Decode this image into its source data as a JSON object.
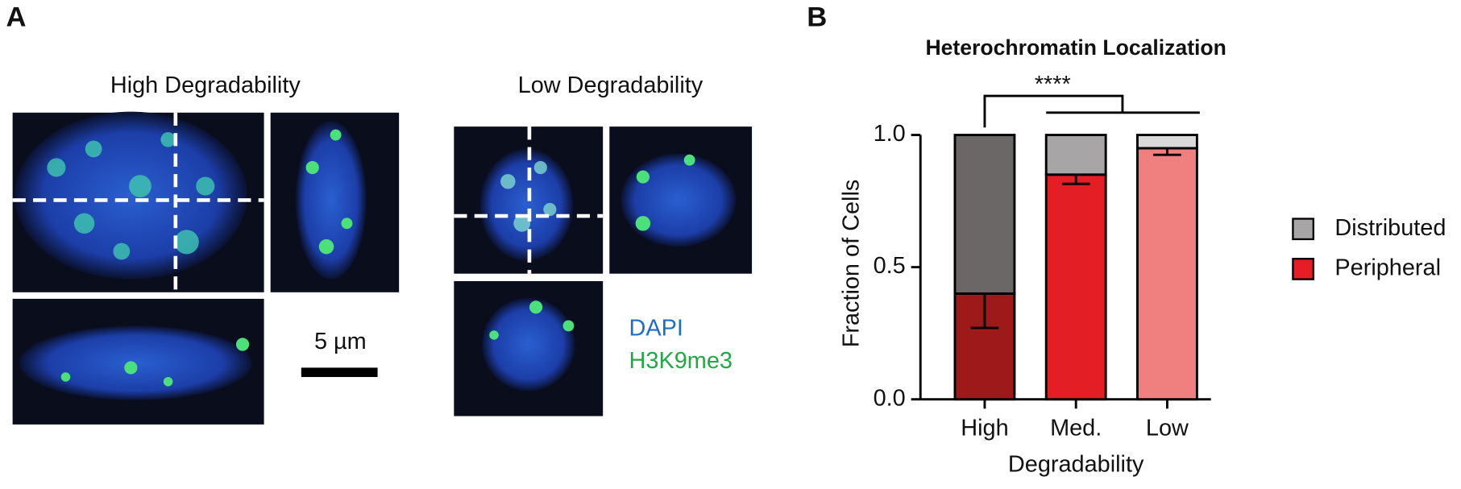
{
  "figure_a": {
    "panel_label": "A",
    "high_title": "High Degradability",
    "low_title": "Low Degradability",
    "scale_label": "5 µm",
    "stain_1": "DAPI",
    "stain_2": "H3K9me3"
  },
  "chart_data": {
    "type": "stacked_bar",
    "panel_label": "B",
    "title": "Heterochromatin Localization",
    "x_label": "Degradability",
    "y_label": "Fraction of Cells",
    "annotation": "****",
    "categories": [
      "High",
      "Med.",
      "Low"
    ],
    "series": [
      {
        "name": "Peripheral",
        "color": "#e31e24",
        "colors": [
          "#9e1a1a",
          "#e31e24",
          "#f08080"
        ],
        "values": [
          0.4,
          0.85,
          0.95
        ],
        "errors": [
          0.13,
          0.035,
          0.025
        ]
      },
      {
        "name": "Distributed",
        "color": "#a7a5a6",
        "colors": [
          "#6b6766",
          "#a7a5a6",
          "#d9d9d9"
        ],
        "values": [
          0.6,
          0.15,
          0.05
        ]
      }
    ],
    "ylim": [
      0,
      1
    ],
    "yticks": [
      {
        "value": 0,
        "label": "0.0"
      },
      0.5,
      {
        "value": 1,
        "label": "1.0"
      }
    ],
    "legend": "right"
  }
}
